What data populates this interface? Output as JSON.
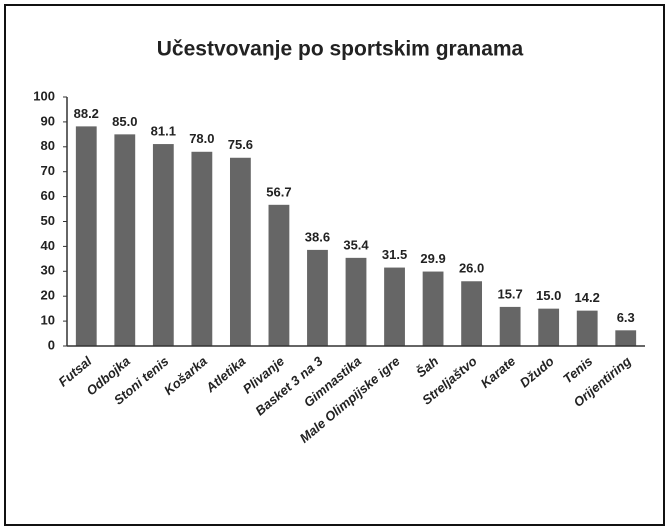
{
  "chart_data": {
    "type": "bar",
    "title": "Učestvovanje po sportskim granama",
    "categories": [
      "Futsal",
      "Odbojka",
      "Stoni tenis",
      "Košarka",
      "Atletika",
      "Plivanje",
      "Basket 3 na 3",
      "Gimnastika",
      "Male Olimpijske igre",
      "Šah",
      "Streljaštvo",
      "Karate",
      "Džudo",
      "Tenis",
      "Orijentiring"
    ],
    "values": [
      88.2,
      85.0,
      81.1,
      78.0,
      75.6,
      56.7,
      38.6,
      35.4,
      31.5,
      29.9,
      26.0,
      15.7,
      15.0,
      14.2,
      6.3
    ],
    "value_labels": [
      "88.2",
      "85.0",
      "81.1",
      "78.0",
      "75.6",
      "56.7",
      "38.6",
      "35.4",
      "31.5",
      "29.9",
      "26.0",
      "15.7",
      "15.0",
      "14.2",
      "6.3"
    ],
    "color": "#666666",
    "ylim": [
      0,
      100
    ],
    "yticks": [
      0,
      10,
      20,
      30,
      40,
      50,
      60,
      70,
      80,
      90,
      100
    ],
    "grid": false
  }
}
